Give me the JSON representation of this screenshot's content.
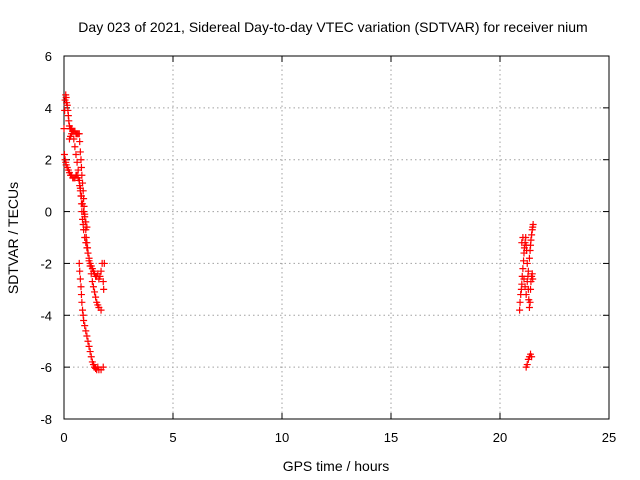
{
  "chart_data": {
    "type": "scatter",
    "title": "Day 023 of 2021, Sidereal Day-to-day VTEC variation (SDTVAR) for receiver nium",
    "xlabel": "GPS time / hours",
    "ylabel": "SDTVAR / TECUs",
    "xlim": [
      0,
      25
    ],
    "ylim": [
      -8,
      6
    ],
    "xticks": [
      "0",
      "5",
      "10",
      "15",
      "20",
      "25"
    ],
    "yticks": [
      "-8",
      "-6",
      "-4",
      "-2",
      "0",
      "2",
      "4",
      "6"
    ],
    "grid": true,
    "marker": "plus",
    "color": "#ff0000",
    "series": [
      {
        "points": [
          [
            0.0,
            3.2
          ],
          [
            0.03,
            3.9
          ],
          [
            0.05,
            4.3
          ],
          [
            0.08,
            4.5
          ],
          [
            0.1,
            4.4
          ],
          [
            0.12,
            4.2
          ],
          [
            0.15,
            4.1
          ],
          [
            0.18,
            3.9
          ],
          [
            0.2,
            3.7
          ],
          [
            0.22,
            3.5
          ],
          [
            0.25,
            3.3
          ],
          [
            0.28,
            3.2
          ],
          [
            0.3,
            3.2
          ],
          [
            0.35,
            3.2
          ],
          [
            0.4,
            3.1
          ],
          [
            0.45,
            3.1
          ],
          [
            0.5,
            3.1
          ],
          [
            0.55,
            3.0
          ],
          [
            0.6,
            3.0
          ],
          [
            0.65,
            3.0
          ],
          [
            0.7,
            3.0
          ],
          [
            0.72,
            2.7
          ],
          [
            0.75,
            2.3
          ],
          [
            0.78,
            2.0
          ],
          [
            0.8,
            1.7
          ],
          [
            0.82,
            1.4
          ],
          [
            0.85,
            1.1
          ],
          [
            0.88,
            0.8
          ],
          [
            0.9,
            0.5
          ],
          [
            0.92,
            0.2
          ],
          [
            0.95,
            -0.1
          ],
          [
            0.98,
            -0.4
          ],
          [
            1.0,
            -0.7
          ],
          [
            1.02,
            -1.0
          ],
          [
            1.05,
            -1.2
          ],
          [
            1.08,
            -1.4
          ],
          [
            1.1,
            -1.6
          ],
          [
            1.15,
            -1.9
          ],
          [
            1.2,
            -2.1
          ],
          [
            1.25,
            -2.4
          ],
          [
            1.3,
            -2.7
          ],
          [
            1.35,
            -2.9
          ],
          [
            1.4,
            -3.1
          ],
          [
            1.45,
            -3.3
          ],
          [
            1.5,
            -3.5
          ],
          [
            1.55,
            -3.6
          ],
          [
            1.6,
            -3.7
          ],
          [
            1.7,
            -3.8
          ],
          [
            0.02,
            2.2
          ],
          [
            0.05,
            2.0
          ],
          [
            0.08,
            1.9
          ],
          [
            0.1,
            1.8
          ],
          [
            0.15,
            1.7
          ],
          [
            0.2,
            1.6
          ],
          [
            0.25,
            1.5
          ],
          [
            0.3,
            1.4
          ],
          [
            0.35,
            1.4
          ],
          [
            0.4,
            1.3
          ],
          [
            0.45,
            1.3
          ],
          [
            0.5,
            1.3
          ],
          [
            0.55,
            1.4
          ],
          [
            0.6,
            1.4
          ],
          [
            0.65,
            1.3
          ],
          [
            0.7,
            1.2
          ],
          [
            0.72,
            1.0
          ],
          [
            0.75,
            0.8
          ],
          [
            0.78,
            0.6
          ],
          [
            0.8,
            0.3
          ],
          [
            0.82,
            0.0
          ],
          [
            0.85,
            -0.3
          ],
          [
            0.88,
            -0.5
          ],
          [
            0.9,
            -0.7
          ],
          [
            0.95,
            -1.0
          ],
          [
            1.0,
            -1.2
          ],
          [
            1.05,
            -1.4
          ],
          [
            1.1,
            -1.6
          ],
          [
            1.15,
            -1.8
          ],
          [
            1.2,
            -2.0
          ],
          [
            1.25,
            -2.1
          ],
          [
            1.3,
            -2.2
          ],
          [
            1.35,
            -2.3
          ],
          [
            1.4,
            -2.4
          ],
          [
            1.45,
            -2.5
          ],
          [
            1.5,
            -2.5
          ],
          [
            1.55,
            -2.4
          ],
          [
            1.6,
            -2.6
          ],
          [
            1.65,
            -2.5
          ],
          [
            1.7,
            -2.3
          ],
          [
            1.75,
            -2.0
          ],
          [
            1.8,
            -2.7
          ],
          [
            1.82,
            -3.0
          ],
          [
            1.85,
            -2.0
          ],
          [
            0.25,
            2.8
          ],
          [
            0.3,
            2.9
          ],
          [
            0.35,
            3.0
          ],
          [
            0.4,
            3.1
          ],
          [
            0.45,
            2.8
          ],
          [
            0.5,
            2.5
          ],
          [
            0.55,
            2.2
          ],
          [
            0.6,
            1.9
          ],
          [
            0.65,
            1.6
          ],
          [
            0.7,
            1.2
          ],
          [
            0.75,
            0.9
          ],
          [
            0.8,
            0.6
          ],
          [
            0.85,
            0.3
          ],
          [
            0.9,
            0.0
          ],
          [
            0.95,
            -0.2
          ],
          [
            1.0,
            -0.4
          ],
          [
            1.05,
            -0.6
          ],
          [
            0.7,
            -2.0
          ],
          [
            0.72,
            -2.3
          ],
          [
            0.75,
            -2.6
          ],
          [
            0.78,
            -2.9
          ],
          [
            0.8,
            -3.2
          ],
          [
            0.82,
            -3.5
          ],
          [
            0.85,
            -3.8
          ],
          [
            0.88,
            -4.0
          ],
          [
            0.9,
            -4.2
          ],
          [
            0.95,
            -4.4
          ],
          [
            1.0,
            -4.6
          ],
          [
            1.05,
            -4.8
          ],
          [
            1.1,
            -5.0
          ],
          [
            1.15,
            -5.2
          ],
          [
            1.2,
            -5.4
          ],
          [
            1.25,
            -5.6
          ],
          [
            1.3,
            -5.8
          ],
          [
            1.35,
            -5.9
          ],
          [
            1.4,
            -6.0
          ],
          [
            1.45,
            -6.05
          ],
          [
            1.5,
            -6.1
          ],
          [
            1.55,
            -6.0
          ],
          [
            1.6,
            -6.1
          ],
          [
            1.7,
            -6.1
          ],
          [
            1.8,
            -6.0
          ],
          [
            20.9,
            -3.8
          ],
          [
            20.92,
            -3.5
          ],
          [
            20.95,
            -3.2
          ],
          [
            20.98,
            -3.0
          ],
          [
            21.0,
            -2.8
          ],
          [
            21.02,
            -2.5
          ],
          [
            21.05,
            -2.2
          ],
          [
            21.08,
            -1.9
          ],
          [
            21.1,
            -1.6
          ],
          [
            21.12,
            -1.4
          ],
          [
            21.15,
            -1.2
          ],
          [
            21.18,
            -1.0
          ],
          [
            21.2,
            -1.3
          ],
          [
            21.22,
            -1.5
          ],
          [
            21.25,
            -2.0
          ],
          [
            21.28,
            -2.5
          ],
          [
            21.3,
            -3.0
          ],
          [
            21.32,
            -3.4
          ],
          [
            21.35,
            -3.7
          ],
          [
            21.38,
            -3.5
          ],
          [
            21.4,
            -3.0
          ],
          [
            21.42,
            -2.7
          ],
          [
            21.45,
            -2.5
          ],
          [
            21.48,
            -2.4
          ],
          [
            21.5,
            -2.6
          ],
          [
            21.35,
            -1.8
          ],
          [
            21.38,
            -1.5
          ],
          [
            21.4,
            -1.3
          ],
          [
            21.42,
            -1.1
          ],
          [
            21.45,
            -0.9
          ],
          [
            21.48,
            -0.7
          ],
          [
            21.5,
            -0.6
          ],
          [
            21.52,
            -0.5
          ],
          [
            21.0,
            -1.2
          ],
          [
            21.05,
            -1.0
          ],
          [
            21.1,
            -2.6
          ],
          [
            21.15,
            -2.9
          ],
          [
            21.2,
            -3.2
          ],
          [
            21.25,
            -2.7
          ],
          [
            21.3,
            -2.3
          ],
          [
            21.2,
            -6.0
          ],
          [
            21.25,
            -5.9
          ],
          [
            21.3,
            -5.7
          ],
          [
            21.35,
            -5.6
          ],
          [
            21.4,
            -5.5
          ],
          [
            21.45,
            -5.6
          ]
        ]
      }
    ]
  }
}
